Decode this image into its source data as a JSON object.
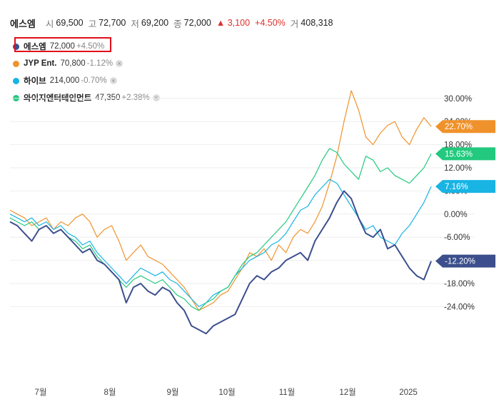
{
  "header": {
    "stock_name": "에스엠",
    "open_label": "시",
    "open_value": "69,500",
    "high_label": "고",
    "high_value": "72,700",
    "low_label": "저",
    "low_value": "69,200",
    "close_label": "종",
    "close_value": "72,000",
    "change_value": "▲ 3,100",
    "change_pct": "+4.50%",
    "volume_label": "거",
    "volume_value": "408,318"
  },
  "legend": [
    {
      "name": "에스엠",
      "price": "72,000",
      "change": "+4.50%",
      "color": "#3c4f8c",
      "removable": false
    },
    {
      "name": "JYP Ent.",
      "price": "70,800",
      "change": "-1.12%",
      "color": "#f0922b",
      "removable": true
    },
    {
      "name": "하이브",
      "price": "214,000",
      "change": "-0.70%",
      "color": "#18b4e3",
      "removable": true
    },
    {
      "name": "와이지엔터테인먼트",
      "price": "47,350",
      "change": "+2.38%",
      "color": "#22c97e",
      "removable": true
    }
  ],
  "chart_data": {
    "type": "line",
    "x_labels": [
      "7월",
      "8월",
      "9월",
      "10월",
      "11월",
      "12월",
      "2025"
    ],
    "y_ticks": [
      30,
      24,
      18,
      12,
      6,
      0,
      -6,
      -12,
      -18,
      -24
    ],
    "y_tick_labels": [
      "30.00%",
      "24.00%",
      "18.00%",
      "12.00%",
      "6.00%",
      "0.00%",
      "-6.00%",
      "-12.00%",
      "-18.00%",
      "-24.00%"
    ],
    "ylim": [
      -38,
      37
    ],
    "grid": "horizontal",
    "series": [
      {
        "name": "에스엠",
        "color": "#3c4f8c",
        "end_label": "-12.20%",
        "values": [
          -2,
          -3,
          -5,
          -7,
          -4,
          -3,
          -5,
          -4,
          -6,
          -8,
          -10,
          -9,
          -12,
          -13,
          -15,
          -17,
          -23,
          -19,
          -18,
          -20,
          -21,
          -19,
          -20,
          -23,
          -25,
          -29,
          -30,
          -31,
          -29,
          -28,
          -27,
          -26,
          -22,
          -18,
          -16,
          -17,
          -15,
          -14,
          -12,
          -11,
          -10,
          -12,
          -7,
          -4,
          -1,
          3,
          6,
          4,
          -1,
          -5,
          -6,
          -4,
          -9,
          -8,
          -11,
          -14,
          -16,
          -17,
          -12.2
        ]
      },
      {
        "name": "JYP Ent.",
        "color": "#f0922b",
        "end_label": "22.70%",
        "values": [
          1,
          0,
          -1,
          -3,
          -2,
          -1,
          -4,
          -2,
          -3,
          -1,
          0,
          -2,
          -6,
          -4,
          -3,
          -7,
          -12,
          -10,
          -8,
          -11,
          -12,
          -13,
          -15,
          -17,
          -19,
          -22,
          -25,
          -24,
          -23,
          -21,
          -20,
          -17,
          -14,
          -10,
          -11,
          -9,
          -12,
          -8,
          -10,
          -6,
          -4,
          -5,
          -2,
          2,
          8,
          15,
          24,
          32,
          27,
          20,
          18,
          21,
          23,
          24,
          20,
          18,
          22,
          25,
          22.7
        ]
      },
      {
        "name": "하이브",
        "color": "#18b4e3",
        "end_label": "7.16%",
        "values": [
          0,
          -1,
          -2,
          -1,
          -3,
          -2,
          -4,
          -3,
          -5,
          -6,
          -8,
          -7,
          -10,
          -12,
          -14,
          -16,
          -18,
          -16,
          -14,
          -15,
          -16,
          -15,
          -17,
          -18,
          -20,
          -22,
          -24,
          -23,
          -21,
          -20,
          -19,
          -16,
          -14,
          -12,
          -11,
          -10,
          -8,
          -7,
          -5,
          -2,
          1,
          2,
          5,
          7,
          9,
          8,
          5,
          2,
          -1,
          -4,
          -3,
          -6,
          -7,
          -8,
          -5,
          -3,
          0,
          3,
          7.16
        ]
      },
      {
        "name": "와이지엔터테인먼트",
        "color": "#22c97e",
        "end_label": "15.63%",
        "values": [
          -1,
          -2,
          -3,
          -2,
          -4,
          -3,
          -5,
          -4,
          -6,
          -7,
          -9,
          -8,
          -11,
          -13,
          -15,
          -17,
          -19,
          -17,
          -16,
          -17,
          -18,
          -17,
          -19,
          -21,
          -22,
          -24,
          -25,
          -23,
          -22,
          -20,
          -19,
          -16,
          -13,
          -11,
          -10,
          -8,
          -6,
          -4,
          -2,
          1,
          4,
          7,
          10,
          14,
          17,
          16,
          13,
          11,
          9,
          15,
          14,
          11,
          12,
          10,
          9,
          8,
          10,
          12,
          15.63
        ]
      }
    ]
  }
}
